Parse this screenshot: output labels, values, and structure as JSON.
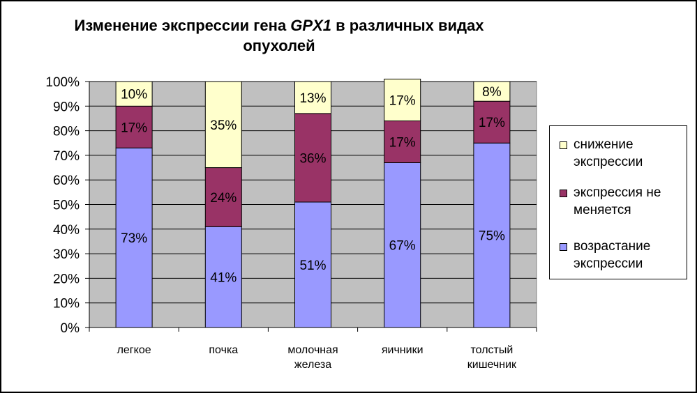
{
  "chart_data": {
    "type": "bar",
    "stacked": true,
    "title_parts": [
      "Изменение экспрессии гена ",
      "GPX1",
      " в различных видах опухолей"
    ],
    "categories": [
      [
        "легкое"
      ],
      [
        "почка"
      ],
      [
        "молочная",
        "железа"
      ],
      [
        "яичники"
      ],
      [
        "толстый",
        "кишечник"
      ]
    ],
    "series": [
      {
        "name": "возрастание экспрессии",
        "values": [
          73,
          41,
          51,
          67,
          75
        ],
        "labels": [
          "73%",
          "41%",
          "51%",
          "67%",
          "75%"
        ]
      },
      {
        "name": "экспрессия не меняется",
        "values": [
          17,
          24,
          36,
          17,
          17
        ],
        "labels": [
          "17%",
          "24%",
          "36%",
          "17%",
          "17%"
        ]
      },
      {
        "name": "снижение экспрессии",
        "values": [
          10,
          35,
          13,
          17,
          8
        ],
        "labels": [
          "10%",
          "35%",
          "13%",
          "17%",
          "8%"
        ]
      }
    ],
    "yticks": [
      "0%",
      "10%",
      "20%",
      "30%",
      "40%",
      "50%",
      "60%",
      "70%",
      "80%",
      "90%",
      "100%"
    ],
    "ylim": [
      0,
      100
    ],
    "grid": true,
    "legend": "right",
    "legend_order": [
      2,
      1,
      0
    ],
    "legend_labels": [
      [
        "снижение",
        "экспрессии"
      ],
      [
        "экспрессия не",
        "меняется"
      ],
      [
        "возрастание",
        "экспрессии"
      ]
    ],
    "colors": [
      "#9999ff",
      "#993366",
      "#ffffcc"
    ],
    "plot_background": "#c0c0c0"
  }
}
